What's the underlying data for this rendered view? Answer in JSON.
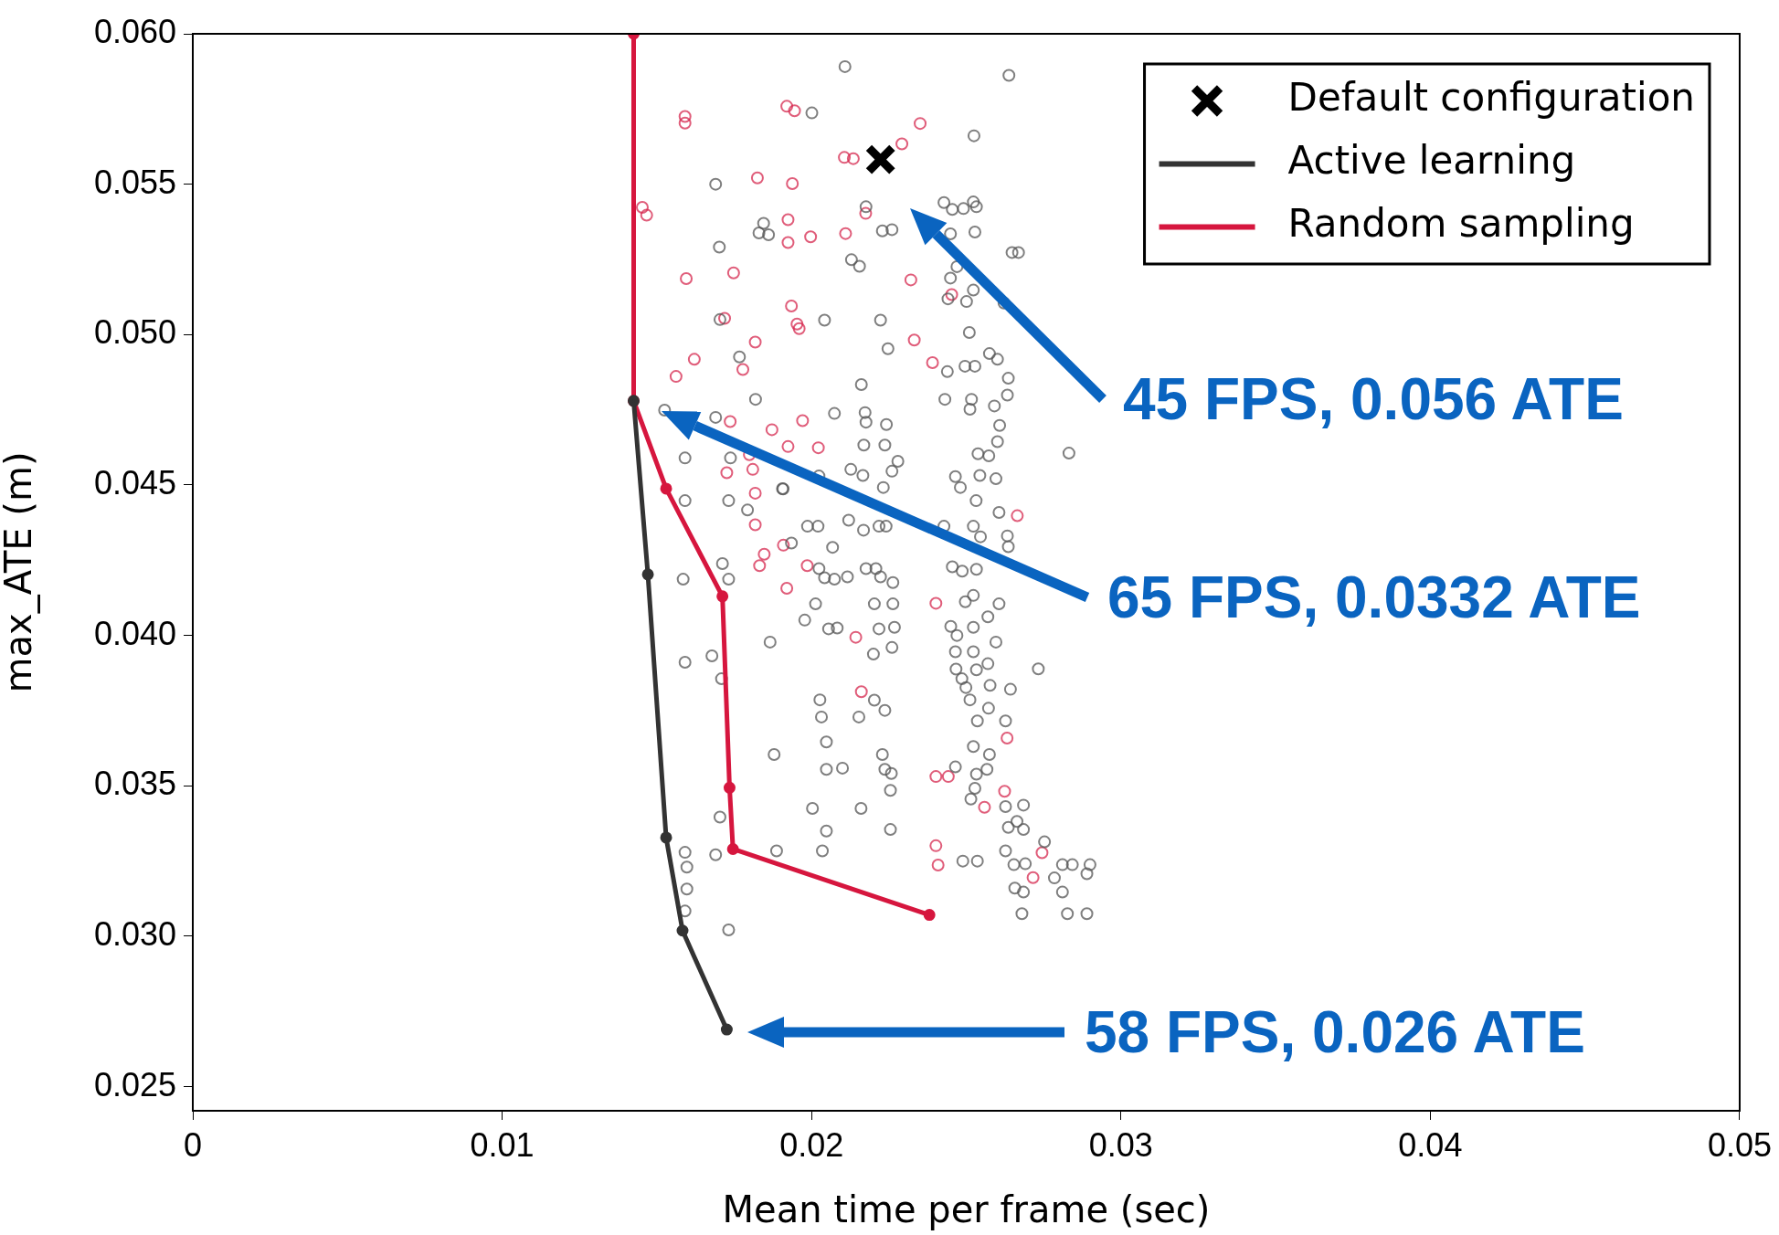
{
  "chart_data": {
    "type": "scatter",
    "xlabel": "Mean time per frame (sec)",
    "ylabel": "max_ATE (m)",
    "xlim": [
      0,
      0.05
    ],
    "xticks": [
      0,
      0.01,
      0.02,
      0.03,
      0.04,
      0.05
    ],
    "ylim": [
      0.0242,
      0.06
    ],
    "yticks": [
      {
        "value": 0.025,
        "label": "0.025"
      },
      {
        "value": 0.03,
        "label": "0.030"
      },
      {
        "value": 0.035,
        "label": "0.035"
      },
      {
        "value": 0.04,
        "label": "0.040"
      },
      {
        "value": 0.045,
        "label": "0.045"
      },
      {
        "value": 0.05,
        "label": "0.050"
      },
      {
        "value": 0.055,
        "label": "0.055"
      },
      {
        "value": 0.06,
        "label": "0.060"
      }
    ],
    "legend": "top right",
    "series": [
      {
        "name": "Default configuration",
        "marker": "cross",
        "color": "#000000",
        "x": [
          0.02223
        ],
        "values": [
          0.05582
        ]
      },
      {
        "name": "Active learning",
        "type": "line",
        "marker": "circle",
        "color": "#333333",
        "x": [
          0.01425,
          0.01471,
          0.0153,
          0.01583,
          0.01726
        ],
        "values": [
          0.0478,
          0.04203,
          0.03328,
          0.03019,
          0.0269
        ]
      },
      {
        "name": "Random sampling",
        "type": "line",
        "marker": "circle",
        "color": "#d6163e",
        "x": [
          0.01425,
          0.01425,
          0.0153,
          0.01712,
          0.01735,
          0.01746,
          0.02381
        ],
        "values": [
          0.06,
          0.0478,
          0.04488,
          0.0413,
          0.03494,
          0.0329,
          0.03071
        ]
      },
      {
        "marker": "circle",
        "color": "#555555",
        "x": [
          0.02108,
          0.02638,
          0.02001,
          0.02525,
          0.0169,
          0.02176,
          0.02428,
          0.02455,
          0.02491,
          0.02523,
          0.02533,
          0.01845,
          0.0183,
          0.01861,
          0.01702,
          0.02229,
          0.0226,
          0.02449,
          0.02528,
          0.02648,
          0.02669,
          0.02129,
          0.02155,
          0.0247,
          0.02449,
          0.02523,
          0.02501,
          0.02622,
          0.02441,
          0.01704,
          0.02042,
          0.02223,
          0.0251,
          0.02247,
          0.01767,
          0.02575,
          0.02601,
          0.02439,
          0.02496,
          0.02528,
          0.02636,
          0.02161,
          0.01819,
          0.02431,
          0.02517,
          0.02633,
          0.02512,
          0.02591,
          0.01525,
          0.0169,
          0.02074,
          0.02173,
          0.02176,
          0.02242,
          0.02608,
          0.02601,
          0.02169,
          0.02237,
          0.02538,
          0.02573,
          0.02832,
          0.01591,
          0.01738,
          0.02279,
          0.02127,
          0.02166,
          0.0226,
          0.02465,
          0.02544,
          0.02596,
          0.02232,
          0.01908,
          0.02481,
          0.02024,
          0.01591,
          0.01732,
          0.01793,
          0.01906,
          0.01987,
          0.02021,
          0.0212,
          0.02168,
          0.02218,
          0.02241,
          0.02428,
          0.02523,
          0.02546,
          0.02633,
          0.02636,
          0.02606,
          0.02532,
          0.02068,
          0.01935,
          0.01712,
          0.01732,
          0.01585,
          0.02024,
          0.02042,
          0.02074,
          0.02116,
          0.02176,
          0.02208,
          0.02223,
          0.02263,
          0.02455,
          0.02487,
          0.02533,
          0.02523,
          0.02497,
          0.02606,
          0.02013,
          0.02203,
          0.02263,
          0.01978,
          0.02055,
          0.02083,
          0.02218,
          0.02268,
          0.0245,
          0.02523,
          0.0257,
          0.01866,
          0.0247,
          0.02596,
          0.022,
          0.0226,
          0.02465,
          0.02523,
          0.0257,
          0.01591,
          0.01678,
          0.01709,
          0.02467,
          0.02533,
          0.02733,
          0.02486,
          0.02499,
          0.02577,
          0.02643,
          0.02203,
          0.02512,
          0.02027,
          0.02032,
          0.02153,
          0.02237,
          0.02572,
          0.02536,
          0.02627,
          0.02048,
          0.01879,
          0.02229,
          0.02523,
          0.02575,
          0.02048,
          0.021,
          0.02237,
          0.02258,
          0.02465,
          0.02533,
          0.02567,
          0.02255,
          0.02528,
          0.02515,
          0.02003,
          0.0216,
          0.02627,
          0.02685,
          0.01704,
          0.02048,
          0.02255,
          0.02664,
          0.02636,
          0.02685,
          0.02753,
          0.01591,
          0.0169,
          0.01887,
          0.02035,
          0.02627,
          0.02489,
          0.02536,
          0.02691,
          0.02654,
          0.02811,
          0.02843,
          0.029,
          0.0289,
          0.02785,
          0.01597,
          0.01597,
          0.02657,
          0.02685,
          0.02811,
          0.01591,
          0.0268,
          0.02827,
          0.0289,
          0.01732
        ],
        "values": [
          0.05891,
          0.05862,
          0.05737,
          0.05661,
          0.055,
          0.05425,
          0.05439,
          0.05416,
          0.05419,
          0.05441,
          0.05425,
          0.0537,
          0.05338,
          0.05332,
          0.05291,
          0.05345,
          0.05349,
          0.05335,
          0.05341,
          0.05273,
          0.05273,
          0.05249,
          0.05227,
          0.05226,
          0.05188,
          0.05148,
          0.0511,
          0.05105,
          0.05119,
          0.0505,
          0.05048,
          0.05048,
          0.05007,
          0.04953,
          0.04926,
          0.04937,
          0.04918,
          0.04877,
          0.04895,
          0.04895,
          0.04855,
          0.04834,
          0.04785,
          0.04785,
          0.04785,
          0.04799,
          0.04752,
          0.04763,
          0.04749,
          0.04725,
          0.04738,
          0.04741,
          0.04709,
          0.04701,
          0.04698,
          0.04644,
          0.04633,
          0.04633,
          0.04604,
          0.04597,
          0.04606,
          0.0459,
          0.0459,
          0.04579,
          0.04552,
          0.04532,
          0.04546,
          0.04528,
          0.04532,
          0.04521,
          0.04492,
          0.04487,
          0.04492,
          0.0453,
          0.04448,
          0.04448,
          0.04417,
          0.04488,
          0.04363,
          0.04363,
          0.04383,
          0.0435,
          0.04363,
          0.04363,
          0.04363,
          0.04363,
          0.04328,
          0.04331,
          0.04295,
          0.04409,
          0.04448,
          0.04293,
          0.04307,
          0.04239,
          0.04187,
          0.04187,
          0.04222,
          0.04192,
          0.04187,
          0.04195,
          0.04222,
          0.04222,
          0.04195,
          0.04176,
          0.04228,
          0.04214,
          0.0422,
          0.04133,
          0.04112,
          0.04105,
          0.04105,
          0.04105,
          0.04105,
          0.04051,
          0.04022,
          0.04025,
          0.04022,
          0.04027,
          0.0403,
          0.04027,
          0.04062,
          0.03978,
          0.04,
          0.03978,
          0.03938,
          0.0396,
          0.03946,
          0.03946,
          0.03906,
          0.03911,
          0.03932,
          0.03856,
          0.03888,
          0.03886,
          0.03889,
          0.03856,
          0.03827,
          0.03834,
          0.03821,
          0.03785,
          0.03786,
          0.03786,
          0.03729,
          0.03729,
          0.03751,
          0.03758,
          0.03716,
          0.03716,
          0.03646,
          0.03604,
          0.03604,
          0.03631,
          0.03604,
          0.03555,
          0.03559,
          0.03555,
          0.03541,
          0.03563,
          0.03539,
          0.03555,
          0.03485,
          0.03492,
          0.03456,
          0.03425,
          0.03425,
          0.03431,
          0.03436,
          0.03396,
          0.0335,
          0.03355,
          0.03382,
          0.03362,
          0.03355,
          0.03314,
          0.03279,
          0.03271,
          0.03284,
          0.03284,
          0.03284,
          0.0325,
          0.0325,
          0.03241,
          0.03238,
          0.03238,
          0.03238,
          0.03238,
          0.03208,
          0.03194,
          0.0323,
          0.03157,
          0.0316,
          0.03147,
          0.03147,
          0.03084,
          0.03075,
          0.03075,
          0.03075,
          0.03021
        ]
      },
      {
        "marker": "circle",
        "color": "#d6284f",
        "x": [
          0.01591,
          0.01591,
          0.01453,
          0.01467,
          0.01595,
          0.01748,
          0.01719,
          0.01778,
          0.01562,
          0.01621,
          0.01825,
          0.01938,
          0.0192,
          0.01945,
          0.02106,
          0.02135,
          0.0211,
          0.02175,
          0.01997,
          0.01924,
          0.01924,
          0.02351,
          0.02292,
          0.01935,
          0.01953,
          0.0196,
          0.01818,
          0.02321,
          0.02332,
          0.02391,
          0.02453,
          0.01737,
          0.01872,
          0.01971,
          0.01924,
          0.02022,
          0.01726,
          0.0181,
          0.01818,
          0.01799,
          0.01818,
          0.01909,
          0.01847,
          0.01832,
          0.01986,
          0.0192,
          0.02143,
          0.02402,
          0.02665,
          0.02161,
          0.02632,
          0.02402,
          0.02442,
          0.02624,
          0.02559,
          0.02402,
          0.02409,
          0.02745,
          0.02716
        ],
        "values": [
          0.05725,
          0.05703,
          0.05423,
          0.05397,
          0.05186,
          0.05205,
          0.05054,
          0.04884,
          0.04861,
          0.04918,
          0.05521,
          0.05502,
          0.05759,
          0.05744,
          0.05589,
          0.05585,
          0.05336,
          0.05403,
          0.05325,
          0.05382,
          0.05306,
          0.05702,
          0.05634,
          0.05095,
          0.05035,
          0.0502,
          0.04975,
          0.05182,
          0.04982,
          0.04907,
          0.05133,
          0.04711,
          0.04684,
          0.04714,
          0.04628,
          0.04624,
          0.04541,
          0.04552,
          0.04473,
          0.04601,
          0.04368,
          0.043,
          0.0427,
          0.04232,
          0.04232,
          0.04157,
          0.03994,
          0.04107,
          0.04398,
          0.03813,
          0.03659,
          0.03531,
          0.03531,
          0.03482,
          0.03429,
          0.03301,
          0.03237,
          0.03278,
          0.03195
        ]
      }
    ],
    "annotations": [
      "45 FPS, 0.056 ATE",
      "65 FPS, 0.0332 ATE",
      "58 FPS, 0.026 ATE"
    ]
  }
}
